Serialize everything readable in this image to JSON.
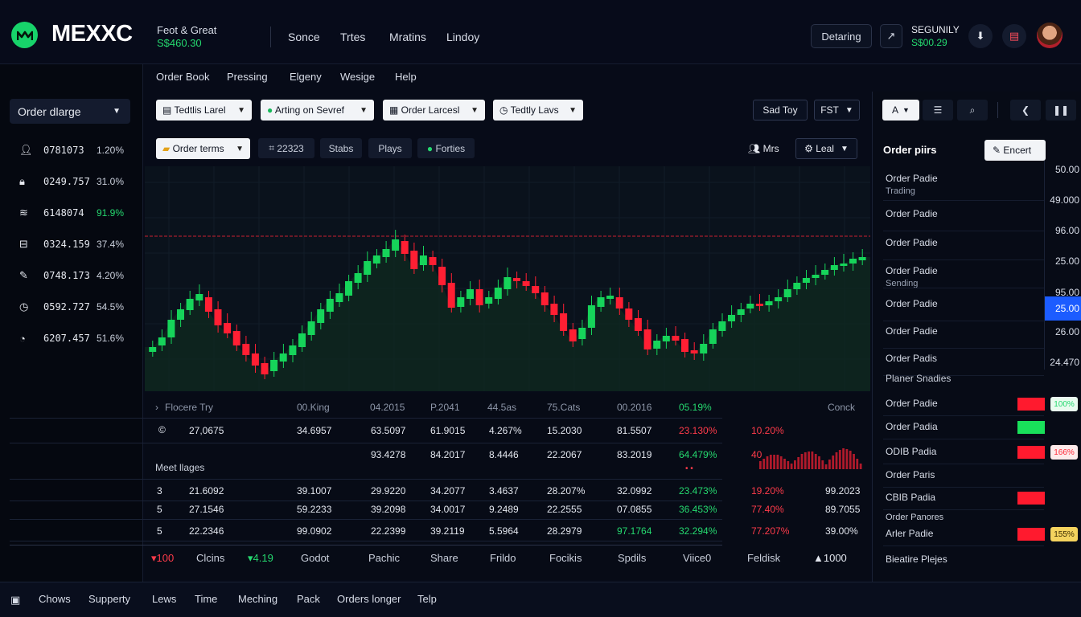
{
  "header": {
    "logo_text": "MEXXC",
    "feed_title": "Feot & Great",
    "feed_value": "S$460.30",
    "nav": [
      "Sonce",
      "Trtes",
      "Mratins",
      "Lindoy"
    ],
    "detaring_label": "Detaring",
    "arrow_icon": "↗",
    "security_label": "SEGUNILY",
    "security_value": "S$00.29",
    "download_icon": "⬇",
    "card_icon": "▤"
  },
  "sidebar": {
    "select_label": "Order dlarge",
    "items": [
      {
        "icon": "user-icon",
        "value": "0781073",
        "pct": "1.20%",
        "pct_color": "#c9cfdb"
      },
      {
        "icon": "lock-icon",
        "value": "0249.757",
        "pct": "31.0%",
        "pct_color": "#c9cfdb"
      },
      {
        "icon": "layers-icon",
        "value": "6148074",
        "pct": "91.9%",
        "pct_color": "#25d96f"
      },
      {
        "icon": "bus-icon",
        "value": "0324.159",
        "pct": "37.4%",
        "pct_color": "#c9cfdb"
      },
      {
        "icon": "pen-icon",
        "value": "0748.173",
        "pct": "4.20%",
        "pct_color": "#c9cfdb"
      },
      {
        "icon": "clock-icon",
        "value": "0592.727",
        "pct": "54.5%",
        "pct_color": "#c9cfdb"
      },
      {
        "icon": "gauge-icon",
        "value": "6207.457",
        "pct": "51.6%",
        "pct_color": "#c9cfdb"
      }
    ]
  },
  "main_tabs": [
    "Order Book",
    "Pressing",
    "Elgeny",
    "Wesige",
    "Help"
  ],
  "filters_row1": {
    "f1": "Tedtlis Larel",
    "f2": "Arting on Sevref",
    "f3": "Order Larcesl",
    "f4": "Tedtly Lavs",
    "sad_toy": "Sad Toy",
    "fst": "FST"
  },
  "filters_row2": {
    "order_terms": "Order terms",
    "id_chip": "22323",
    "stabs": "Stabs",
    "plays": "Plays",
    "forties": "Forties",
    "mrs": "Mrs",
    "leal": "Leal"
  },
  "chart_data": {
    "type": "candlestick",
    "resistance_line": true,
    "candles": [
      [
        438,
        432
      ],
      [
        430,
        420
      ],
      [
        420,
        398
      ],
      [
        398,
        385
      ],
      [
        386,
        372
      ],
      [
        374,
        366
      ],
      [
        370,
        388
      ],
      [
        385,
        405
      ],
      [
        402,
        415
      ],
      [
        412,
        430
      ],
      [
        428,
        442
      ],
      [
        440,
        455
      ],
      [
        452,
        466
      ],
      [
        462,
        448
      ],
      [
        450,
        440
      ],
      [
        442,
        430
      ],
      [
        432,
        415
      ],
      [
        417,
        400
      ],
      [
        402,
        385
      ],
      [
        388,
        372
      ],
      [
        376,
        365
      ],
      [
        368,
        350
      ],
      [
        352,
        340
      ],
      [
        342,
        325
      ],
      [
        328,
        318
      ],
      [
        320,
        310
      ],
      [
        312,
        298
      ],
      [
        300,
        316
      ],
      [
        312,
        335
      ],
      [
        330,
        318
      ],
      [
        320,
        330
      ],
      [
        332,
        355
      ],
      [
        352,
        383
      ],
      [
        382,
        370
      ],
      [
        372,
        360
      ],
      [
        360,
        380
      ],
      [
        378,
        370
      ],
      [
        372,
        358
      ],
      [
        360,
        345
      ],
      [
        346,
        350
      ],
      [
        350,
        356
      ],
      [
        356,
        365
      ],
      [
        364,
        380
      ],
      [
        378,
        392
      ],
      [
        390,
        412
      ],
      [
        410,
        425
      ],
      [
        422,
        408
      ],
      [
        408,
        380
      ],
      [
        382,
        370
      ],
      [
        372,
        368
      ],
      [
        370,
        384
      ],
      [
        384,
        398
      ],
      [
        396,
        412
      ],
      [
        410,
        435
      ],
      [
        434,
        424
      ],
      [
        425,
        418
      ],
      [
        418,
        424
      ],
      [
        422,
        438
      ],
      [
        436,
        440
      ],
      [
        440,
        428
      ],
      [
        428,
        410
      ],
      [
        412,
        400
      ],
      [
        400,
        392
      ],
      [
        392,
        385
      ],
      [
        384,
        378
      ],
      [
        378,
        380
      ],
      [
        380,
        375
      ],
      [
        375,
        370
      ],
      [
        370,
        360
      ],
      [
        360,
        352
      ],
      [
        352,
        346
      ],
      [
        346,
        342
      ],
      [
        342,
        336
      ],
      [
        336,
        330
      ],
      [
        330,
        328
      ],
      [
        328,
        322
      ],
      [
        324,
        320
      ]
    ]
  },
  "table": {
    "header": [
      "Flocere Try",
      "00.King",
      "04.2015",
      "P.2041",
      "44.5as",
      "75.Cats",
      "00.2016",
      "05.19%",
      "Conck"
    ],
    "row_a": [
      "27,0675",
      "34.6957",
      "63.5097",
      "61.9015",
      "4.267%",
      "15.2030",
      "81.5507",
      "23.130%",
      "10.20%"
    ],
    "row_b": [
      "93.4278",
      "84.2017",
      "8.4446",
      "22.2067",
      "83.2019",
      "64.479%",
      "40"
    ],
    "section_label": "Meet llages",
    "rows": [
      [
        "3",
        "21.6092",
        "39.1007",
        "29.9220",
        "34.2077",
        "3.4637",
        "28.207%",
        "32.0992",
        "23.473%",
        "19.20%",
        "99.2023"
      ],
      [
        "5",
        "27.1546",
        "59.2233",
        "39.2098",
        "34.0017",
        "9.2489",
        "22.2555",
        "07.0855",
        "36.453%",
        "77.40%",
        "89.7055"
      ],
      [
        "5",
        "22.2346",
        "99.0902",
        "22.2399",
        "39.2119",
        "5.5964",
        "28.2979",
        "97.1764",
        "32.294%",
        "77.207%",
        "39.00%"
      ]
    ],
    "footer": [
      "▾100",
      "Clcins",
      "▾4.19",
      "Godot",
      "Pachic",
      "Share",
      "Frildo",
      "Focikis",
      "Spdils",
      "Viice0",
      "Feldisk",
      "▲1000"
    ]
  },
  "right_panel": {
    "a_label": "A",
    "order_pairs": "Order piirs",
    "encert": "Encert",
    "prices": [
      "50.00",
      "49.000",
      "96.00",
      "25.00",
      "95.00",
      "25.00",
      "26.00",
      "24.470"
    ],
    "rows": [
      {
        "label": "Order Padie",
        "sub": "Trading"
      },
      {
        "label": "Order Padie",
        "sub": ""
      },
      {
        "label": "Order Padie",
        "sub": ""
      },
      {
        "label": "Order Padie",
        "sub": "Sending"
      },
      {
        "label": "Order Padie",
        "sub": ""
      },
      {
        "label": "Order Padie",
        "sub": ""
      },
      {
        "label": "Order Padis",
        "sub": ""
      }
    ],
    "section": "Planer Snadies",
    "bar_rows": [
      {
        "label": "Order Padie",
        "bar_color": "#ff1a2e",
        "badge": "100%",
        "badge_color": "#25d96f",
        "badge_bg": "#e9fbef"
      },
      {
        "label": "Order Padia",
        "bar_color": "#19e05a",
        "badge": "",
        "badge_color": "",
        "badge_bg": ""
      },
      {
        "label": "ODIB Padia",
        "bar_color": "#ff1a2e",
        "badge": "166%",
        "badge_color": "#ff2a3a",
        "badge_bg": "#fdeaea"
      },
      {
        "label": "Order Paris",
        "bar_color": "",
        "badge": "",
        "badge_color": "",
        "badge_bg": ""
      },
      {
        "label": "CBIB Padia",
        "bar_color": "#ff1a2e",
        "badge": "",
        "badge_color": "",
        "badge_bg": ""
      },
      {
        "label": "Arler Padie",
        "bar_color": "#ff1a2e",
        "badge": "155%",
        "badge_color": "#3a2a00",
        "badge_bg": "#f4d35e"
      }
    ],
    "order_panores": "Order Panores",
    "bottom_label": "Bieatire Plejes"
  },
  "bottombar": {
    "items": [
      "Chows",
      "Supperty",
      "Lews",
      "Time",
      "Meching",
      "Pack",
      "Orders longer",
      "Telp"
    ]
  }
}
